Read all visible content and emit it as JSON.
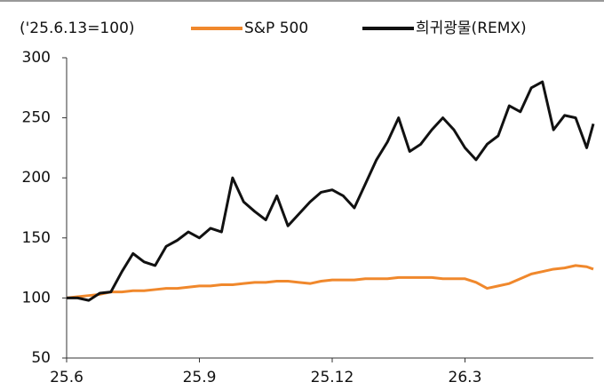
{
  "chart_data": {
    "type": "line",
    "y_label": "('25.6.13=100)",
    "x": [
      0,
      0.25,
      0.5,
      0.75,
      1,
      1.25,
      1.5,
      1.75,
      2,
      2.25,
      2.5,
      2.75,
      3,
      3.25,
      3.5,
      3.75,
      4,
      4.25,
      4.5,
      4.75,
      5,
      5.25,
      5.5,
      5.75,
      6,
      6.25,
      6.5,
      6.75,
      7,
      7.25,
      7.5,
      7.75,
      8,
      8.25,
      8.5,
      8.75,
      9,
      9.25,
      9.5,
      9.75,
      10,
      10.25,
      10.5,
      10.75,
      11,
      11.25,
      11.5,
      11.75,
      11.9
    ],
    "series": [
      {
        "name": "S&P 500",
        "color": "#f0882c",
        "values": [
          100,
          101,
          102,
          103,
          105,
          105,
          106,
          106,
          107,
          108,
          108,
          109,
          110,
          110,
          111,
          111,
          112,
          113,
          113,
          114,
          114,
          113,
          112,
          114,
          115,
          115,
          115,
          116,
          116,
          116,
          117,
          117,
          117,
          117,
          116,
          116,
          116,
          113,
          108,
          110,
          112,
          116,
          120,
          122,
          124,
          125,
          127,
          126,
          124
        ]
      },
      {
        "name": "희귀광물(REMX)",
        "color": "#111111",
        "values": [
          100,
          100,
          98,
          104,
          105,
          122,
          137,
          130,
          127,
          143,
          148,
          155,
          150,
          158,
          155,
          200,
          180,
          172,
          165,
          185,
          160,
          170,
          180,
          188,
          190,
          185,
          175,
          195,
          215,
          230,
          250,
          222,
          228,
          240,
          250,
          240,
          225,
          215,
          228,
          235,
          260,
          255,
          275,
          280,
          240,
          252,
          250,
          225,
          245
        ]
      }
    ],
    "xlim": [
      0,
      11.9
    ],
    "xticks": [
      {
        "value": 0,
        "label": "25.6"
      },
      {
        "value": 3,
        "label": "25.9"
      },
      {
        "value": 6,
        "label": "25.12"
      },
      {
        "value": 9,
        "label": "26.3"
      }
    ],
    "ylim": [
      50,
      300
    ],
    "yticks": [
      50,
      100,
      150,
      200,
      250,
      300
    ],
    "legend": "top"
  }
}
